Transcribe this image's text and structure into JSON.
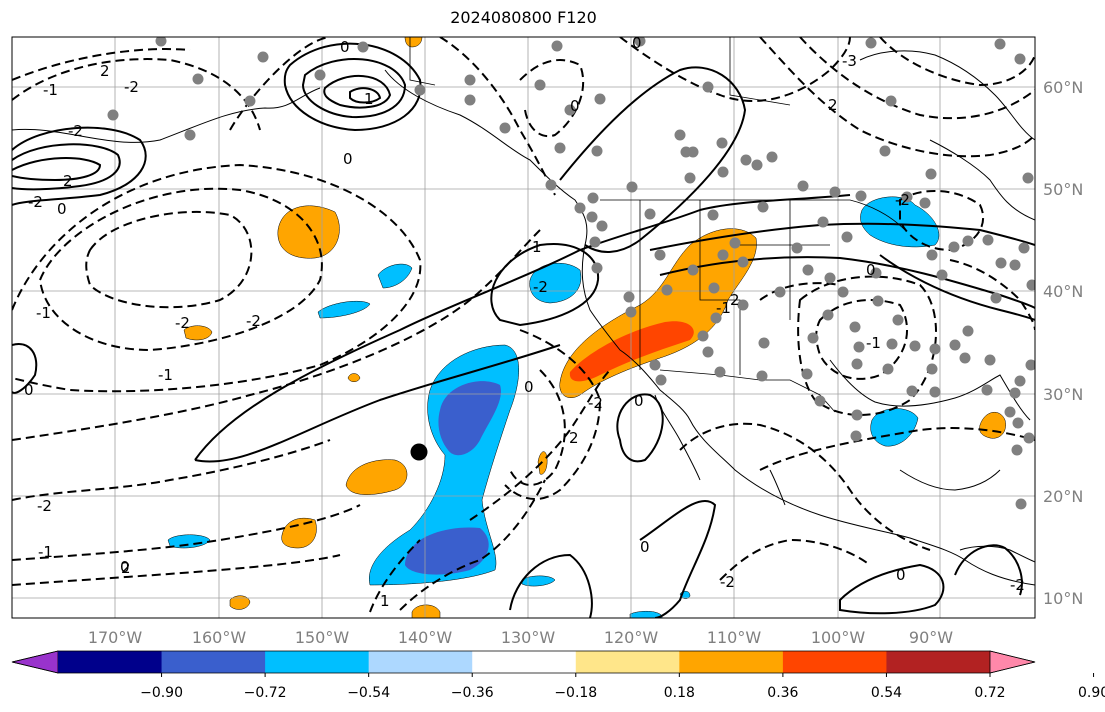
{
  "title": "2024080800 F120",
  "map": {
    "lon_ticks": [
      "170°W",
      "160°W",
      "150°W",
      "140°W",
      "130°W",
      "120°W",
      "110°W",
      "100°W",
      "90°W"
    ],
    "lat_ticks": [
      "60°N",
      "50°N",
      "40°N",
      "30°N",
      "20°N",
      "10°N"
    ],
    "contour_labels": [
      "2",
      "-1",
      "-2",
      "0",
      "-2",
      "1",
      "0",
      "2",
      "-2",
      "0",
      "-1",
      "-2",
      "-1",
      "-2",
      "0",
      "1",
      "-2",
      "-2",
      "0",
      "2",
      "0",
      "-2",
      "-1",
      "1",
      "-1",
      "2",
      "2",
      "0",
      "0",
      "0",
      "-2",
      "0",
      "-2",
      "-1",
      "0",
      "-2",
      "2",
      "0",
      "-3"
    ]
  },
  "colorbar": {
    "colors": [
      "#9933cc",
      "#00008b",
      "#3a5fcd",
      "#00bfff",
      "#add8ff",
      "#ffffff",
      "#ffe68a",
      "#ffa500",
      "#ff4500",
      "#b22222",
      "#ff88aa"
    ],
    "tick_labels": [
      "−0.90",
      "−0.72",
      "−0.54",
      "−0.36",
      "−0.18",
      "0.18",
      "0.36",
      "0.54",
      "0.72",
      "0.90"
    ]
  },
  "colors": {
    "orange": "#ffa500",
    "red": "#ff4500",
    "cyan": "#00bfff",
    "blue": "#3a5fcd",
    "dots": "#808080",
    "grid": "#a0a0a0"
  }
}
